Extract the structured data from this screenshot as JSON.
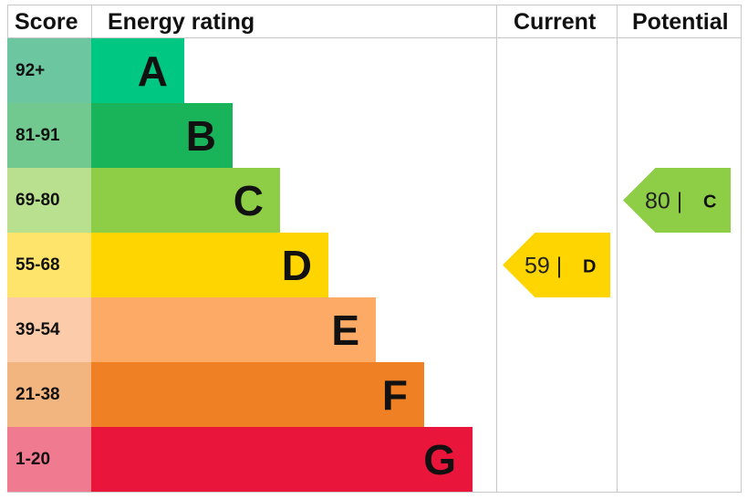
{
  "chart_data": {
    "type": "bar",
    "headers": {
      "score": "Score",
      "rating": "Energy rating",
      "current": "Current",
      "potential": "Potential"
    },
    "bands": [
      {
        "letter": "A",
        "range": "92+",
        "color": "#00c781",
        "score_color": "#6cc7a0"
      },
      {
        "letter": "B",
        "range": "81-91",
        "color": "#19b459",
        "score_color": "#72c98f"
      },
      {
        "letter": "C",
        "range": "69-80",
        "color": "#8dce46",
        "score_color": "#b8e08e"
      },
      {
        "letter": "D",
        "range": "55-68",
        "color": "#ffd500",
        "score_color": "#ffe46b"
      },
      {
        "letter": "E",
        "range": "39-54",
        "color": "#fcaa65",
        "score_color": "#fcccaa"
      },
      {
        "letter": "F",
        "range": "21-38",
        "color": "#ef8023",
        "score_color": "#f3b580"
      },
      {
        "letter": "G",
        "range": "1-20",
        "color": "#e9153b",
        "score_color": "#f07a8f"
      }
    ],
    "current": {
      "value": 59,
      "letter": "D",
      "label": "59 |",
      "color": "#ffd500"
    },
    "potential": {
      "value": 80,
      "letter": "C",
      "label": "80 |",
      "color": "#8dce46"
    }
  }
}
